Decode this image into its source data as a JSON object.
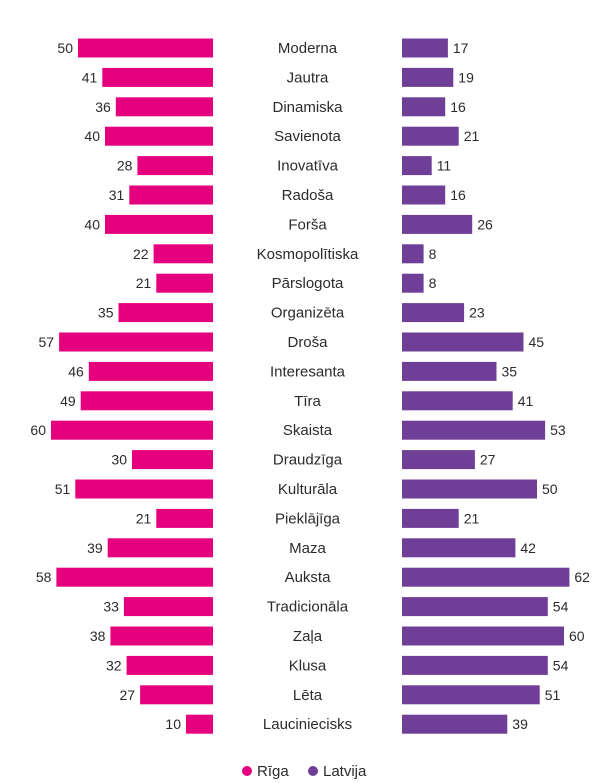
{
  "chart_data": {
    "type": "bar",
    "orientation": "horizontal-diverging",
    "categories": [
      "Moderna",
      "Jautra",
      "Dinamiska",
      "Savienota",
      "Inovatīva",
      "Radoša",
      "Forša",
      "Kosmopolītiska",
      "Pārslogota",
      "Organizēta",
      "Droša",
      "Interesanta",
      "Tīra",
      "Skaista",
      "Draudzīga",
      "Kulturāla",
      "Pieklājīga",
      "Maza",
      "Auksta",
      "Tradicionāla",
      "Zaļa",
      "Klusa",
      "Lēta",
      "Lauciniecisks"
    ],
    "series": [
      {
        "name": "Rīga",
        "color": "#e5007e",
        "values": [
          50,
          41,
          36,
          40,
          28,
          31,
          40,
          22,
          21,
          35,
          57,
          46,
          49,
          60,
          30,
          51,
          21,
          39,
          58,
          33,
          38,
          32,
          27,
          10
        ]
      },
      {
        "name": "Latvija",
        "color": "#6f3f98",
        "values": [
          17,
          19,
          16,
          21,
          11,
          16,
          26,
          8,
          8,
          23,
          45,
          35,
          41,
          53,
          27,
          50,
          21,
          42,
          62,
          54,
          60,
          54,
          51,
          39
        ]
      }
    ],
    "legend_position": "bottom-center",
    "grid": false
  }
}
